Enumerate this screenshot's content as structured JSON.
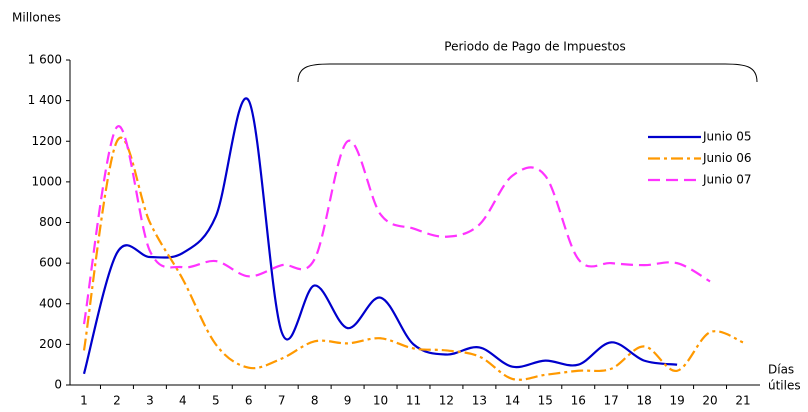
{
  "chart_data": {
    "type": "line",
    "y_label": "Millones",
    "x_label": [
      "Días",
      "útiles"
    ],
    "annotation": "Periodo de Pago de Impuestos",
    "categories": [
      "1",
      "2",
      "3",
      "4",
      "5",
      "6",
      "7",
      "8",
      "9",
      "10",
      "11",
      "12",
      "13",
      "14",
      "15",
      "16",
      "17",
      "18",
      "19",
      "20",
      "21"
    ],
    "series": [
      {
        "name": "Junio 05",
        "color": "#0000cc",
        "style": "solid",
        "values": [
          55,
          650,
          630,
          650,
          830,
          1400,
          260,
          490,
          280,
          430,
          200,
          150,
          185,
          90,
          120,
          100,
          210,
          120,
          100,
          null,
          null
        ]
      },
      {
        "name": "Junio 06",
        "color": "#ff9900",
        "style": "dashdot",
        "values": [
          170,
          1200,
          800,
          520,
          200,
          85,
          130,
          215,
          205,
          230,
          180,
          170,
          140,
          30,
          50,
          70,
          80,
          190,
          70,
          260,
          210
        ]
      },
      {
        "name": "Junio 07",
        "color": "#ff33ff",
        "style": "dashed",
        "values": [
          300,
          1270,
          660,
          580,
          610,
          535,
          590,
          620,
          1200,
          840,
          770,
          730,
          790,
          1030,
          1030,
          620,
          600,
          590,
          600,
          510,
          null
        ]
      }
    ],
    "ylim": [
      0,
      1600
    ],
    "yticks": [
      0,
      200,
      400,
      600,
      800,
      1000,
      1200,
      {
        "value": 1400,
        "label": "1 400"
      },
      {
        "value": 1600,
        "label": "1 600"
      }
    ],
    "legend": "right"
  }
}
